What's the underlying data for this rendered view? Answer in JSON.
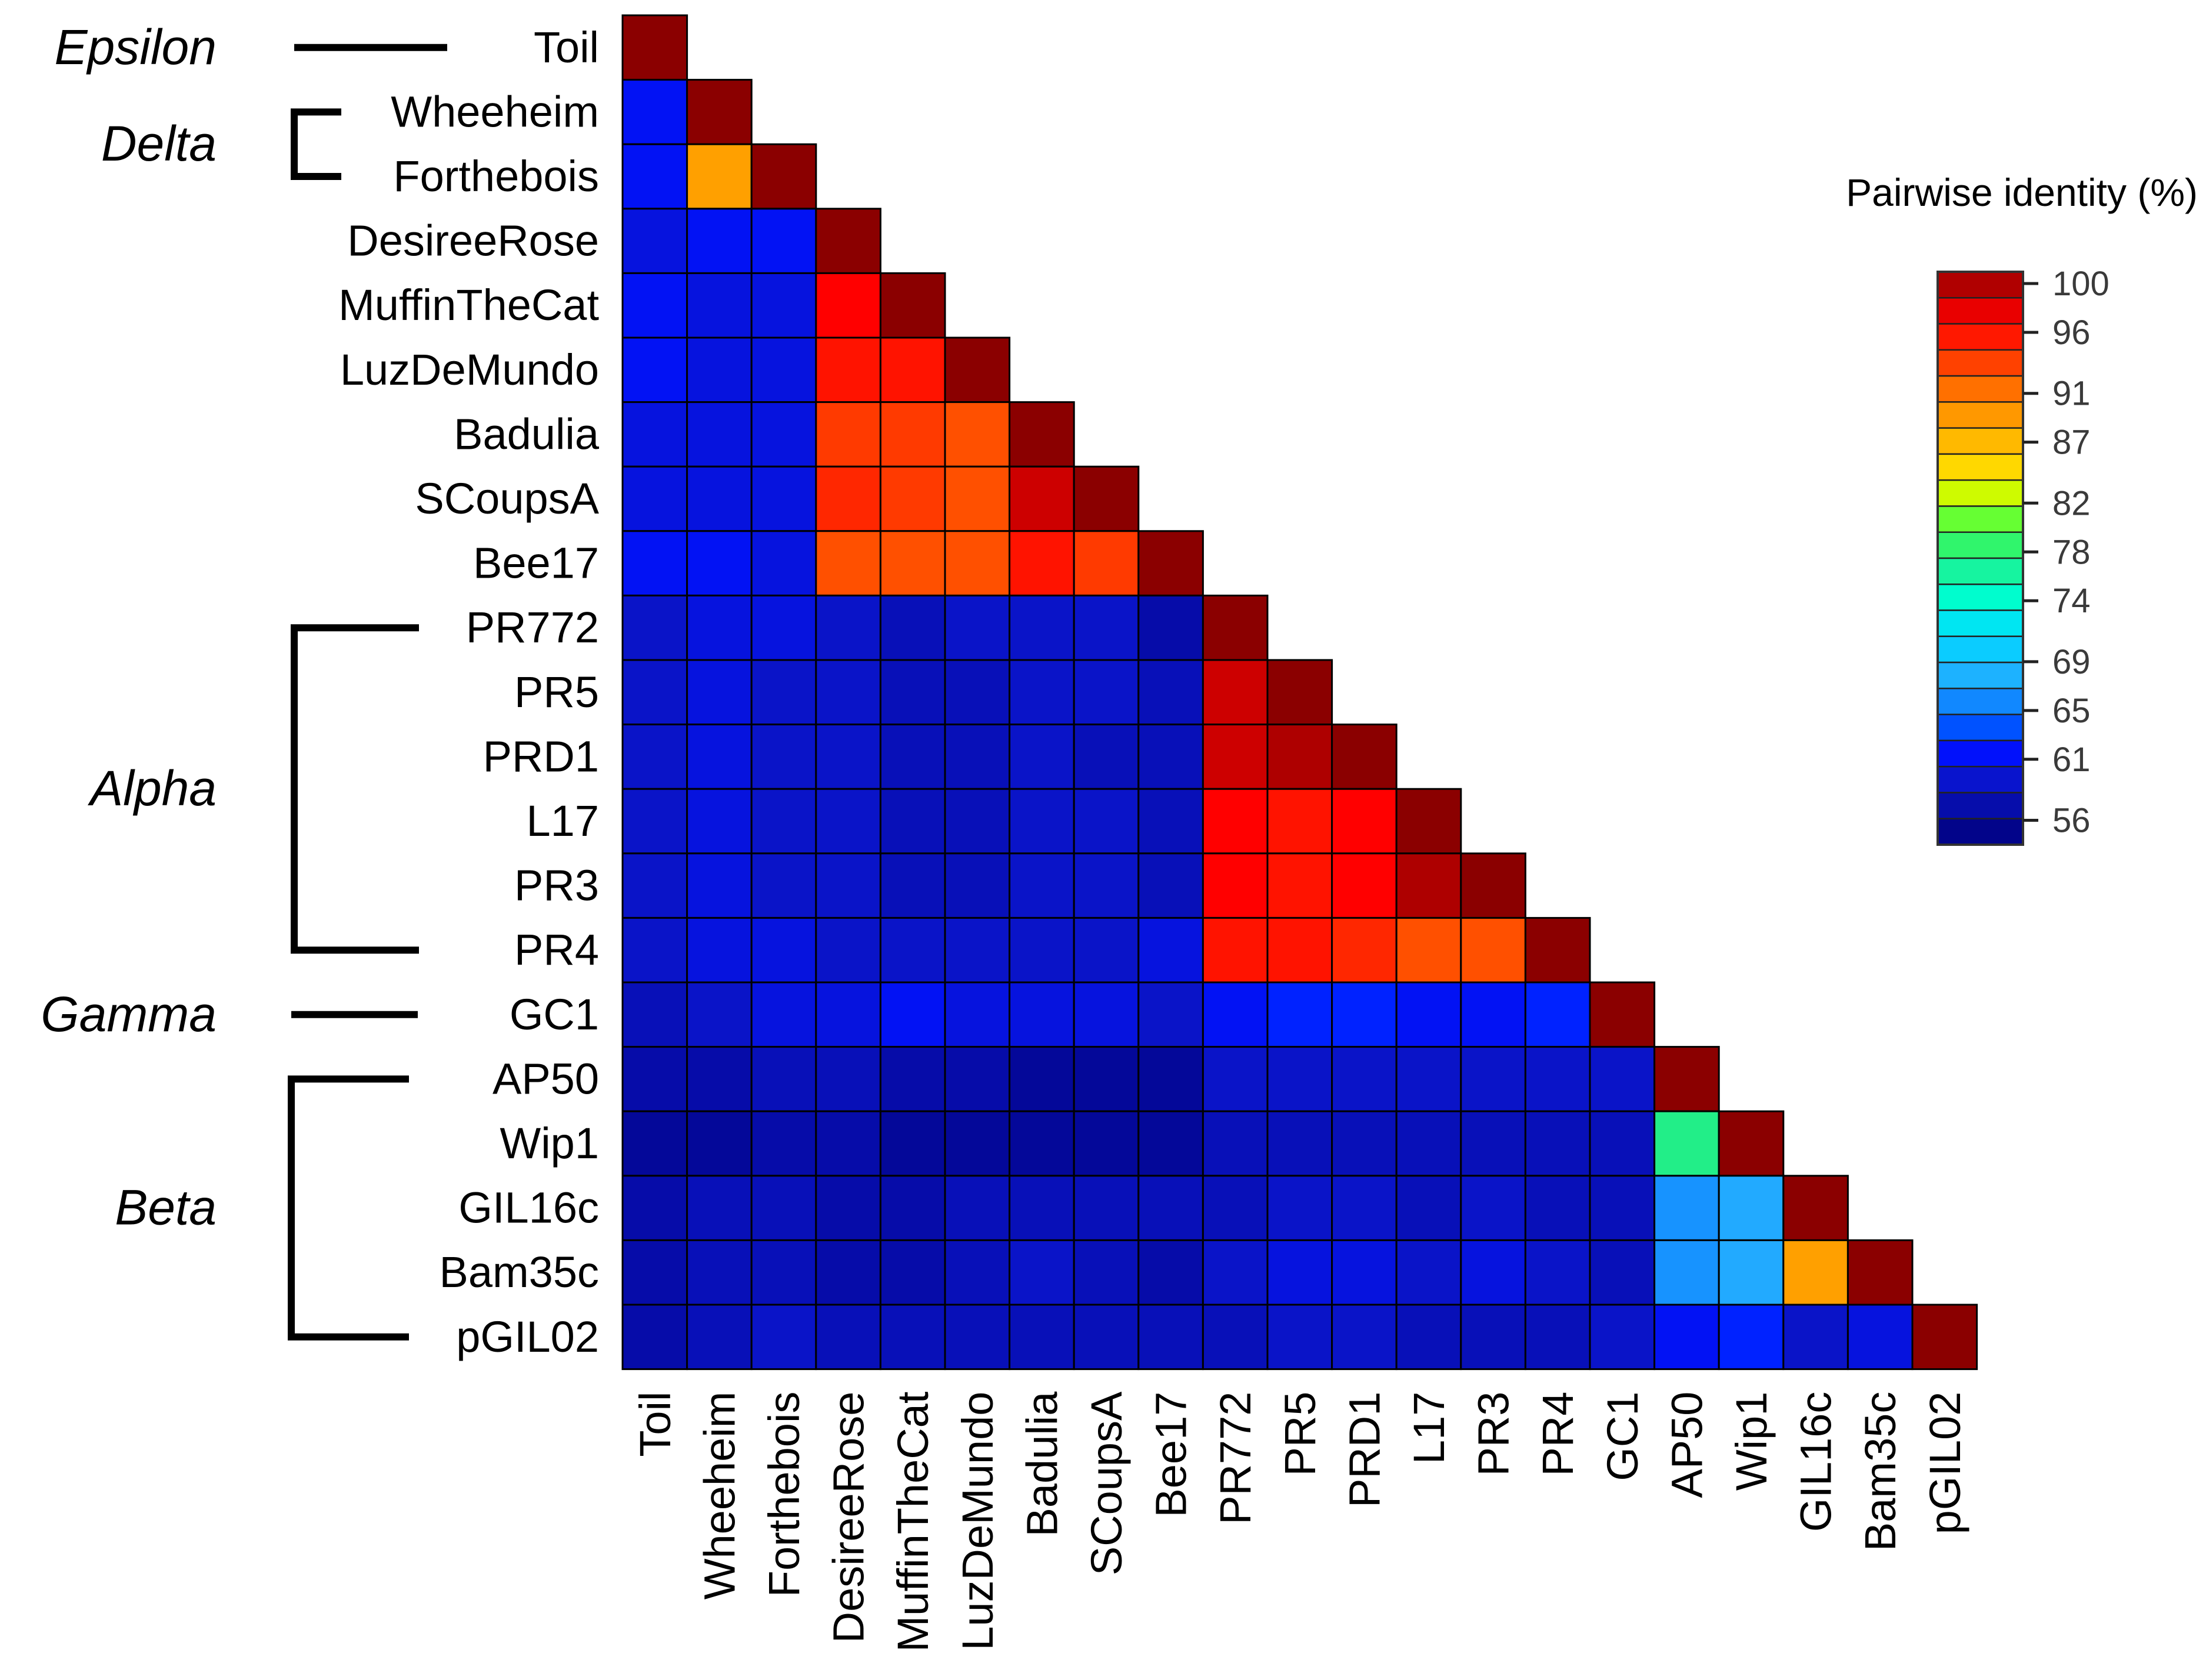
{
  "chart_data": {
    "type": "heatmap",
    "title": "",
    "legend_title": "Pairwise identity (%)",
    "legend_ticks": [
      100,
      96,
      91,
      87,
      82,
      78,
      74,
      69,
      65,
      61,
      56
    ],
    "legend_range": [
      54,
      100
    ],
    "legend_placement": "right",
    "labels": [
      "Toil",
      "Wheeheim",
      "Forthebois",
      "DesireeRose",
      "MuffinTheCat",
      "LuzDeMundo",
      "Badulia",
      "SCoupsA",
      "Bee17",
      "PR772",
      "PR5",
      "PRD1",
      "L17",
      "PR3",
      "PR4",
      "GC1",
      "AP50",
      "Wip1",
      "GIL16c",
      "Bam35c",
      "pGIL02"
    ],
    "groups": [
      {
        "name": "Epsilon",
        "members": [
          "Toil"
        ]
      },
      {
        "name": "Delta",
        "members": [
          "Wheeheim",
          "Forthebois"
        ]
      },
      {
        "name": "Alpha",
        "members": [
          "PR772",
          "PR5",
          "PRD1",
          "L17",
          "PR3",
          "PR4"
        ]
      },
      {
        "name": "Gamma",
        "members": [
          "GC1"
        ]
      },
      {
        "name": "Beta",
        "members": [
          "AP50",
          "Wip1",
          "GIL16c",
          "Bam35c",
          "pGIL02"
        ]
      }
    ],
    "matrix": [
      [
        100
      ],
      [
        61,
        100
      ],
      [
        61,
        88,
        100
      ],
      [
        60,
        61,
        61,
        100
      ],
      [
        61,
        60,
        60,
        96,
        100
      ],
      [
        61,
        60,
        60,
        95,
        95,
        100
      ],
      [
        60,
        60,
        60,
        93,
        93,
        92,
        100
      ],
      [
        60,
        60,
        60,
        94,
        93,
        92,
        98,
        100
      ],
      [
        61,
        61,
        60,
        92,
        92,
        92,
        95,
        93,
        100
      ],
      [
        59,
        60,
        60,
        59,
        58,
        59,
        59,
        59,
        57,
        100
      ],
      [
        59,
        60,
        59,
        59,
        58,
        58,
        59,
        59,
        58,
        98,
        100
      ],
      [
        59,
        60,
        59,
        59,
        58,
        58,
        59,
        58,
        58,
        98,
        99,
        100
      ],
      [
        59,
        60,
        59,
        59,
        58,
        58,
        59,
        59,
        58,
        96,
        95,
        96,
        100
      ],
      [
        59,
        60,
        59,
        59,
        58,
        58,
        59,
        59,
        58,
        96,
        95,
        96,
        99,
        100
      ],
      [
        59,
        60,
        60,
        59,
        59,
        59,
        59,
        59,
        60,
        95,
        95,
        94,
        92,
        92,
        100
      ],
      [
        58,
        59,
        60,
        60,
        61,
        60,
        60,
        60,
        59,
        61,
        62,
        62,
        61,
        61,
        62,
        100
      ],
      [
        57,
        57,
        58,
        58,
        57,
        57,
        56,
        56,
        56,
        59,
        59,
        59,
        59,
        59,
        59,
        59,
        100
      ],
      [
        56,
        56,
        57,
        57,
        56,
        56,
        56,
        56,
        56,
        58,
        58,
        58,
        58,
        58,
        58,
        58,
        77,
        100
      ],
      [
        57,
        58,
        58,
        57,
        57,
        58,
        58,
        58,
        58,
        58,
        59,
        59,
        58,
        59,
        58,
        58,
        66,
        67,
        100
      ],
      [
        57,
        58,
        58,
        57,
        57,
        58,
        59,
        58,
        57,
        59,
        60,
        60,
        59,
        60,
        59,
        58,
        66,
        67,
        88,
        100
      ],
      [
        57,
        58,
        59,
        58,
        58,
        58,
        58,
        58,
        58,
        58,
        59,
        59,
        58,
        58,
        58,
        59,
        61,
        62,
        59,
        60,
        100
      ]
    ]
  }
}
